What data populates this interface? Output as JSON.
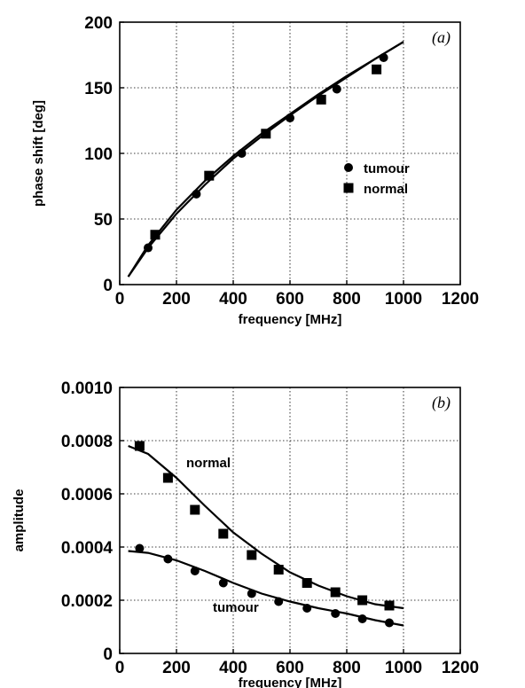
{
  "chart_data": [
    {
      "type": "scatter",
      "panel_label": "(a)",
      "xlabel": "frequency  [MHz]",
      "ylabel": "phase shift  [deg]",
      "xlim": [
        0,
        1200
      ],
      "ylim": [
        0,
        200
      ],
      "xticks": [
        0,
        200,
        400,
        600,
        800,
        1000,
        1200
      ],
      "yticks": [
        0,
        50,
        100,
        150,
        200
      ],
      "ytick_labels": [
        "0",
        "50",
        "100",
        "150",
        "200"
      ],
      "grid": true,
      "legend_position": "center-right",
      "series": [
        {
          "name": "tumour",
          "marker": "circle",
          "x": [
            100,
            270,
            430,
            600,
            765,
            930
          ],
          "y": [
            28,
            69,
            100,
            127,
            149,
            173
          ]
        },
        {
          "name": "normal",
          "marker": "square",
          "x": [
            125,
            315,
            515,
            710,
            905
          ],
          "y": [
            38,
            83,
            115,
            141,
            164
          ]
        }
      ],
      "fits": [
        {
          "x": [
            30,
            100,
            200,
            300,
            400,
            500,
            600,
            700,
            800,
            900,
            1000
          ],
          "y": [
            6,
            28,
            54,
            76,
            96,
            113,
            129,
            144,
            158,
            172,
            185
          ]
        },
        {
          "x": [
            30,
            100,
            200,
            300,
            400,
            500,
            600,
            700,
            800,
            900,
            1000
          ],
          "y": [
            6,
            30,
            57,
            79,
            98,
            115,
            130,
            145,
            159,
            172,
            185
          ]
        }
      ]
    },
    {
      "type": "scatter",
      "panel_label": "(b)",
      "xlabel": "frequency  [MHz]",
      "ylabel": "amplitude",
      "xlim": [
        0,
        1200
      ],
      "ylim": [
        0,
        0.001
      ],
      "xticks": [
        0,
        200,
        400,
        600,
        800,
        1000,
        1200
      ],
      "yticks": [
        0,
        0.0002,
        0.0004,
        0.0006,
        0.0008,
        0.001
      ],
      "ytick_labels": [
        "0",
        "0.0002",
        "0.0004",
        "0.0006",
        "0.0008",
        "0.0010"
      ],
      "grid": true,
      "series": [
        {
          "name": "normal",
          "marker": "square",
          "x": [
            70,
            170,
            265,
            365,
            465,
            560,
            660,
            760,
            855,
            950
          ],
          "y": [
            0.00078,
            0.00066,
            0.00054,
            0.00045,
            0.00037,
            0.000315,
            0.000265,
            0.00023,
            0.0002,
            0.00018
          ]
        },
        {
          "name": "tumour",
          "marker": "circle",
          "x": [
            70,
            170,
            265,
            365,
            465,
            560,
            660,
            760,
            855,
            950
          ],
          "y": [
            0.000395,
            0.000355,
            0.00031,
            0.000265,
            0.000225,
            0.000195,
            0.00017,
            0.00015,
            0.00013,
            0.000115
          ]
        }
      ],
      "fits": [
        {
          "label": "normal",
          "x": [
            30,
            100,
            200,
            300,
            400,
            500,
            600,
            700,
            800,
            900,
            1000
          ],
          "y": [
            0.00078,
            0.00075,
            0.00066,
            0.000555,
            0.000455,
            0.000375,
            0.000305,
            0.000255,
            0.000215,
            0.000185,
            0.00017
          ]
        },
        {
          "label": "tumour",
          "x": [
            30,
            100,
            200,
            300,
            400,
            500,
            600,
            700,
            800,
            900,
            1000
          ],
          "y": [
            0.000385,
            0.000378,
            0.00035,
            0.00031,
            0.000265,
            0.000225,
            0.000195,
            0.00017,
            0.00015,
            0.000125,
            0.000105
          ]
        }
      ]
    }
  ]
}
